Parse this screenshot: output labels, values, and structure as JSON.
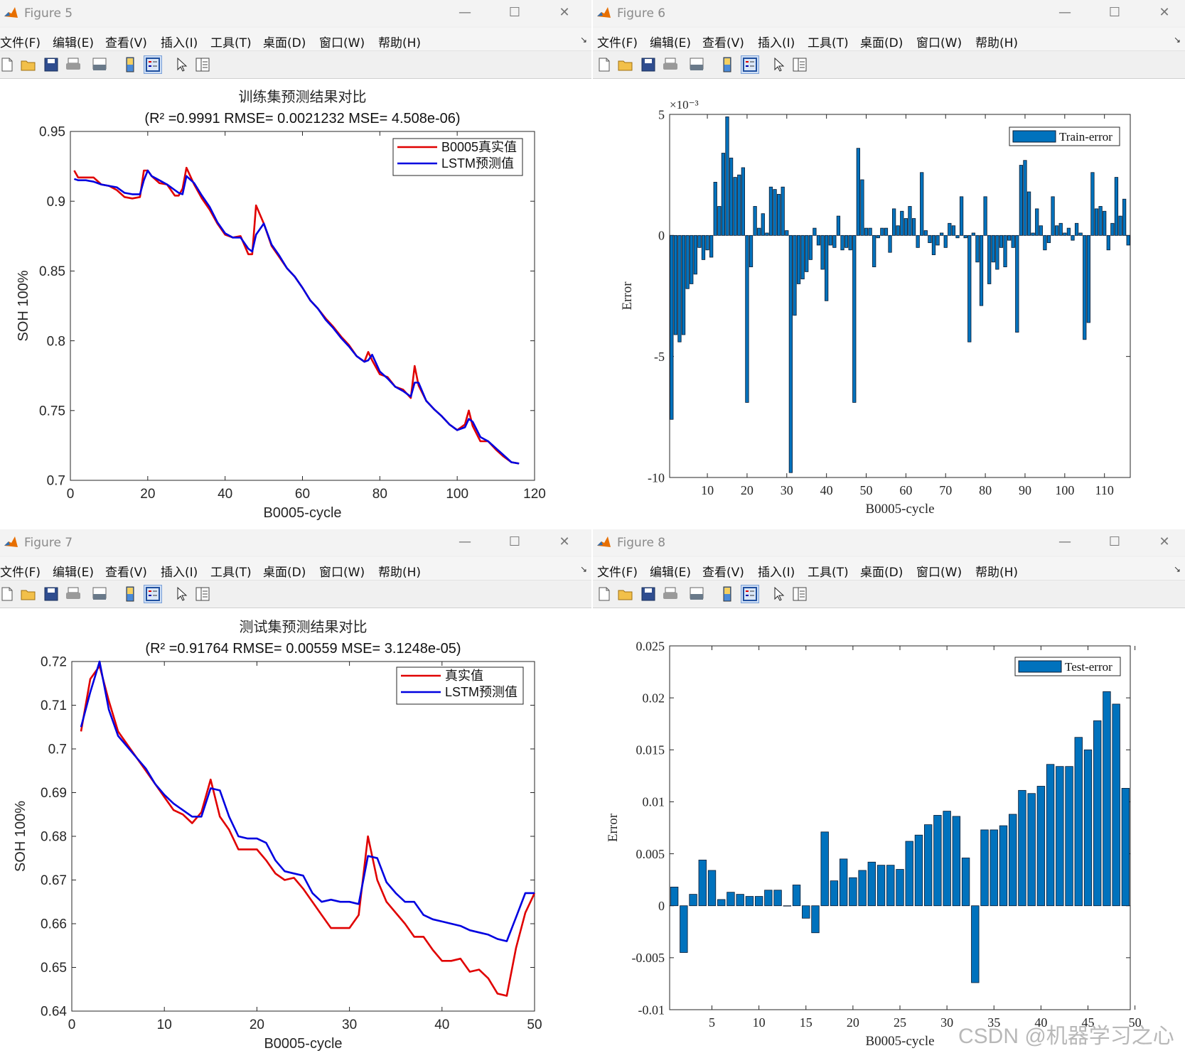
{
  "menu_labels": [
    "文件(F)",
    "编辑(E)",
    "查看(V)",
    "插入(I)",
    "工具(T)",
    "桌面(D)",
    "窗口(W)",
    "帮助(H)"
  ],
  "toolbar_icons": [
    "new-figure-icon",
    "open-file-icon",
    "save-icon",
    "print-icon",
    "print-preview-icon",
    "link-axes-icon",
    "insert-legend-icon",
    "pointer-icon",
    "property-inspector-icon"
  ],
  "colors": {
    "red": "#e00000",
    "blue": "#0000e0",
    "bar": "#0072bd",
    "bar_edge": "#0a1a30"
  },
  "watermark": "CSDN @机器学习之心",
  "windows": [
    {
      "title": "Figure 5"
    },
    {
      "title": "Figure 6"
    },
    {
      "title": "Figure 7"
    },
    {
      "title": "Figure 8"
    }
  ],
  "chart_data": [
    {
      "type": "line",
      "title": "训练集预测结果对比",
      "subtitle": "(R² =0.9991 RMSE= 0.0021232 MSE= 4.508e-06)",
      "xlabel": "B0005-cycle",
      "ylabel": "SOH 100%",
      "xlim": [
        0,
        120
      ],
      "ylim": [
        0.7,
        0.95
      ],
      "xticks": [
        "0",
        "20",
        "40",
        "60",
        "80",
        "100",
        "120"
      ],
      "yticks": [
        "0.7",
        "0.75",
        "0.8",
        "0.85",
        "0.9",
        "0.95"
      ],
      "legend_position": "top-right",
      "series": [
        {
          "name": "B0005真实值",
          "color": "red",
          "x": [
            1,
            2,
            4,
            6,
            8,
            10,
            12,
            14,
            16,
            18,
            19,
            20,
            21,
            23,
            25,
            27,
            28,
            29,
            30,
            32,
            34,
            36,
            38,
            40,
            42,
            44,
            46,
            47,
            48,
            50,
            52,
            54,
            56,
            58,
            60,
            62,
            64,
            66,
            68,
            70,
            72,
            74,
            76,
            77,
            78,
            80,
            82,
            84,
            86,
            88,
            89,
            90,
            92,
            94,
            96,
            98,
            100,
            102,
            103,
            104,
            106,
            108,
            110,
            112,
            114,
            116
          ],
          "y": [
            0.922,
            0.917,
            0.917,
            0.917,
            0.912,
            0.911,
            0.908,
            0.903,
            0.902,
            0.903,
            0.922,
            0.922,
            0.918,
            0.913,
            0.912,
            0.904,
            0.904,
            0.909,
            0.924,
            0.912,
            0.902,
            0.894,
            0.884,
            0.876,
            0.874,
            0.875,
            0.862,
            0.862,
            0.897,
            0.884,
            0.868,
            0.86,
            0.852,
            0.846,
            0.838,
            0.829,
            0.823,
            0.816,
            0.81,
            0.803,
            0.797,
            0.789,
            0.785,
            0.792,
            0.786,
            0.776,
            0.774,
            0.767,
            0.765,
            0.759,
            0.782,
            0.768,
            0.757,
            0.751,
            0.746,
            0.74,
            0.736,
            0.74,
            0.75,
            0.739,
            0.728,
            0.728,
            0.722,
            0.717,
            0.713,
            0.712
          ]
        },
        {
          "name": "LSTM预测值",
          "color": "blue",
          "x": [
            1,
            2,
            4,
            6,
            8,
            10,
            12,
            14,
            16,
            18,
            19,
            20,
            21,
            23,
            25,
            27,
            28,
            29,
            30,
            32,
            34,
            36,
            38,
            40,
            42,
            44,
            46,
            47,
            48,
            50,
            52,
            54,
            56,
            58,
            60,
            62,
            64,
            66,
            68,
            70,
            72,
            74,
            76,
            77,
            78,
            80,
            82,
            84,
            86,
            88,
            89,
            90,
            92,
            94,
            96,
            98,
            100,
            102,
            103,
            104,
            106,
            108,
            110,
            112,
            114,
            116
          ],
          "y": [
            0.916,
            0.915,
            0.915,
            0.914,
            0.912,
            0.911,
            0.91,
            0.906,
            0.905,
            0.905,
            0.915,
            0.922,
            0.918,
            0.915,
            0.912,
            0.908,
            0.906,
            0.905,
            0.918,
            0.913,
            0.904,
            0.896,
            0.885,
            0.877,
            0.874,
            0.874,
            0.866,
            0.864,
            0.876,
            0.884,
            0.869,
            0.861,
            0.852,
            0.846,
            0.838,
            0.829,
            0.823,
            0.815,
            0.809,
            0.802,
            0.796,
            0.789,
            0.785,
            0.786,
            0.79,
            0.778,
            0.773,
            0.767,
            0.764,
            0.76,
            0.77,
            0.77,
            0.757,
            0.751,
            0.746,
            0.74,
            0.736,
            0.738,
            0.744,
            0.742,
            0.731,
            0.728,
            0.723,
            0.718,
            0.713,
            0.712
          ]
        }
      ]
    },
    {
      "type": "bar",
      "xlabel": "B0005-cycle",
      "ylabel": "Error",
      "scale_label": "×10⁻³",
      "xlim": [
        0.5,
        116.5
      ],
      "ylim": [
        -0.01,
        0.005
      ],
      "xticks": [
        "10",
        "20",
        "30",
        "40",
        "50",
        "60",
        "70",
        "80",
        "90",
        "100",
        "110"
      ],
      "yticks": [
        "-10",
        "-5",
        "0",
        "5"
      ],
      "legend_position": "top-right",
      "series": [
        {
          "name": "Train-error",
          "color": "bar",
          "values": [
            -0.0076,
            -0.0041,
            -0.0044,
            -0.0041,
            -0.0022,
            -0.002,
            -0.0016,
            -0.0005,
            -0.001,
            -0.0006,
            -0.0009,
            0.0022,
            0.0012,
            0.0034,
            0.0049,
            0.0032,
            0.0024,
            0.0025,
            0.0028,
            -0.0069,
            -0.0013,
            0.0012,
            0.0003,
            0.0009,
            0.0001,
            0.002,
            0.0019,
            0.0017,
            0.002,
            0.0002,
            -0.0098,
            -0.0033,
            -0.002,
            -0.0018,
            -0.0015,
            -0.001,
            0.0003,
            -0.0004,
            -0.0014,
            -0.0027,
            -0.0004,
            -0.0005,
            0.0008,
            -0.0006,
            -0.0005,
            -0.0006,
            -0.0069,
            0.0036,
            0.0023,
            0.0003,
            0.0003,
            -0.0013,
            -0.0001,
            0.0003,
            0.0003,
            -0.0007,
            0.0011,
            0.0004,
            0.001,
            0.0007,
            0.0012,
            0.0007,
            -0.0005,
            0.0026,
            0.0002,
            -0.0003,
            -0.0008,
            -0.0004,
            0.0001,
            -0.0005,
            0.0005,
            0.0004,
            -0.0001,
            0.0016,
            -0.0001,
            -0.0044,
            0.0001,
            -0.0011,
            -0.0029,
            0.0016,
            -0.002,
            -0.0011,
            -0.0014,
            -0.0005,
            -0.0013,
            -0.0002,
            -0.0005,
            -0.004,
            0.0029,
            0.0031,
            0.0018,
            0.0001,
            0.0011,
            0.0004,
            -0.0006,
            -0.0003,
            0.0016,
            0.0004,
            0.0005,
            0.0001,
            0.0003,
            -0.0002,
            0.0005,
            0.0001,
            -0.0043,
            -0.0036,
            0.0026,
            0.0011,
            0.0012,
            0.001,
            -0.0006,
            0.0005,
            0.0024,
            0.0008,
            0.0015,
            -0.0004
          ]
        }
      ]
    },
    {
      "type": "line",
      "title": "测试集预测结果对比",
      "subtitle": "(R² =0.91764 RMSE= 0.00559 MSE= 3.1248e-05)",
      "xlabel": "B0005-cycle",
      "ylabel": "SOH 100%",
      "xlim": [
        0,
        50
      ],
      "ylim": [
        0.64,
        0.72
      ],
      "xticks": [
        "0",
        "10",
        "20",
        "30",
        "40",
        "50"
      ],
      "yticks": [
        "0.64",
        "0.65",
        "0.66",
        "0.67",
        "0.68",
        "0.69",
        "0.7",
        "0.71",
        "0.72"
      ],
      "legend_position": "top-right",
      "series": [
        {
          "name": "真实值",
          "color": "red",
          "x": [
            1,
            2,
            3,
            4,
            5,
            6,
            7,
            8,
            9,
            10,
            11,
            12,
            13,
            14,
            15,
            16,
            17,
            18,
            19,
            20,
            21,
            22,
            23,
            24,
            25,
            26,
            27,
            28,
            29,
            30,
            31,
            32,
            33,
            34,
            35,
            36,
            37,
            38,
            39,
            40,
            41,
            42,
            43,
            44,
            45,
            46,
            47,
            48,
            49,
            50
          ],
          "y": [
            0.704,
            0.716,
            0.719,
            0.711,
            0.704,
            0.701,
            0.698,
            0.695,
            0.692,
            0.689,
            0.686,
            0.685,
            0.683,
            0.6855,
            0.693,
            0.6845,
            0.6815,
            0.677,
            0.677,
            0.677,
            0.6745,
            0.6715,
            0.67,
            0.6705,
            0.668,
            0.665,
            0.662,
            0.659,
            0.659,
            0.659,
            0.662,
            0.68,
            0.67,
            0.665,
            0.6625,
            0.66,
            0.657,
            0.657,
            0.654,
            0.6515,
            0.6515,
            0.652,
            0.649,
            0.6495,
            0.6475,
            0.644,
            0.6435,
            0.6545,
            0.6625,
            0.667
          ]
        },
        {
          "name": "LSTM预测值",
          "color": "blue",
          "x": [
            1,
            2,
            3,
            4,
            5,
            6,
            7,
            8,
            9,
            10,
            11,
            12,
            13,
            14,
            15,
            16,
            17,
            18,
            19,
            20,
            21,
            22,
            23,
            24,
            25,
            26,
            27,
            28,
            29,
            30,
            31,
            32,
            33,
            34,
            35,
            36,
            37,
            38,
            39,
            40,
            41,
            42,
            43,
            44,
            45,
            46,
            47,
            48,
            49,
            50
          ],
          "y": [
            0.705,
            0.713,
            0.72,
            0.709,
            0.703,
            0.7005,
            0.698,
            0.6955,
            0.692,
            0.6895,
            0.6875,
            0.686,
            0.6845,
            0.6845,
            0.691,
            0.6905,
            0.6845,
            0.68,
            0.6795,
            0.6795,
            0.6785,
            0.6745,
            0.672,
            0.6715,
            0.671,
            0.667,
            0.665,
            0.6655,
            0.665,
            0.665,
            0.6645,
            0.6755,
            0.675,
            0.6695,
            0.667,
            0.665,
            0.665,
            0.662,
            0.661,
            0.6605,
            0.66,
            0.6595,
            0.6585,
            0.658,
            0.6575,
            0.6565,
            0.656,
            0.6615,
            0.667,
            0.667
          ]
        }
      ]
    },
    {
      "type": "bar",
      "xlabel": "B0005-cycle",
      "ylabel": "Error",
      "xlim": [
        0.5,
        49.5
      ],
      "ylim": [
        -0.01,
        0.025
      ],
      "xticks": [
        "5",
        "10",
        "15",
        "20",
        "25",
        "30",
        "35",
        "40",
        "45",
        "50"
      ],
      "yticks": [
        "-0.01",
        "-0.005",
        "0",
        "0.005",
        "0.01",
        "0.015",
        "0.02",
        "0.025"
      ],
      "legend_position": "top-right",
      "series": [
        {
          "name": "Test-error",
          "color": "bar",
          "values": [
            0.0018,
            -0.0045,
            0.0011,
            0.0044,
            0.0034,
            0.0006,
            0.0013,
            0.0011,
            0.0009,
            0.0009,
            0.0015,
            0.0015,
            0,
            0.002,
            -0.0012,
            -0.0026,
            0.0071,
            0.0024,
            0.0045,
            0.0027,
            0.0034,
            0.0042,
            0.0039,
            0.0039,
            0.0035,
            0.0062,
            0.0068,
            0.0078,
            0.0087,
            0.0091,
            0.0086,
            0.0046,
            -0.0074,
            0.0073,
            0.0073,
            0.0077,
            0.0088,
            0.0111,
            0.0108,
            0.0115,
            0.0136,
            0.0134,
            0.0134,
            0.0162,
            0.015,
            0.0178,
            0.0206,
            0.0194,
            0.0113
          ]
        }
      ]
    }
  ]
}
